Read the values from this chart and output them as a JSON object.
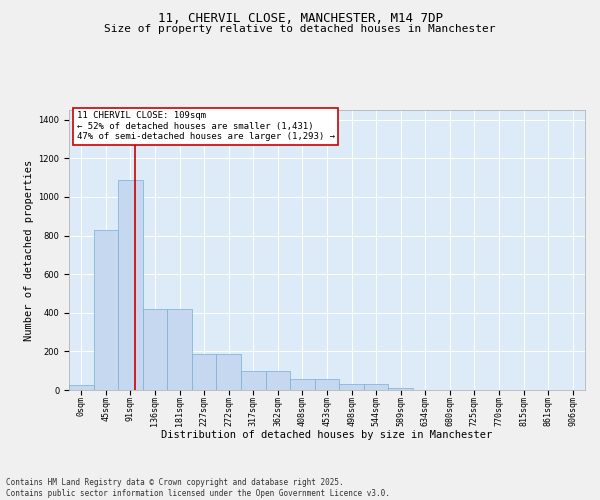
{
  "title_line1": "11, CHERVIL CLOSE, MANCHESTER, M14 7DP",
  "title_line2": "Size of property relative to detached houses in Manchester",
  "xlabel": "Distribution of detached houses by size in Manchester",
  "ylabel": "Number of detached properties",
  "bar_color": "#c5d8f0",
  "bar_edge_color": "#7aadd4",
  "background_color": "#ddeaf8",
  "grid_color": "#ffffff",
  "fig_background_color": "#f0f0f0",
  "categories": [
    "0sqm",
    "45sqm",
    "91sqm",
    "136sqm",
    "181sqm",
    "227sqm",
    "272sqm",
    "317sqm",
    "362sqm",
    "408sqm",
    "453sqm",
    "498sqm",
    "544sqm",
    "589sqm",
    "634sqm",
    "680sqm",
    "725sqm",
    "770sqm",
    "815sqm",
    "861sqm",
    "906sqm"
  ],
  "values": [
    25,
    830,
    1090,
    420,
    420,
    185,
    185,
    100,
    100,
    55,
    55,
    30,
    30,
    12,
    0,
    0,
    0,
    0,
    0,
    0,
    0
  ],
  "ylim": [
    0,
    1450
  ],
  "yticks": [
    0,
    200,
    400,
    600,
    800,
    1000,
    1200,
    1400
  ],
  "property_line_x": 2.18,
  "annotation_text": "11 CHERVIL CLOSE: 109sqm\n← 52% of detached houses are smaller (1,431)\n47% of semi-detached houses are larger (1,293) →",
  "annotation_box_color": "#ffffff",
  "annotation_box_edge_color": "#cc0000",
  "annotation_line_color": "#cc0000",
  "footer_line1": "Contains HM Land Registry data © Crown copyright and database right 2025.",
  "footer_line2": "Contains public sector information licensed under the Open Government Licence v3.0.",
  "title_fontsize": 9,
  "subtitle_fontsize": 8,
  "tick_fontsize": 6,
  "label_fontsize": 7.5,
  "annotation_fontsize": 6.5,
  "footer_fontsize": 5.5,
  "ylabel_fontsize": 7.5
}
